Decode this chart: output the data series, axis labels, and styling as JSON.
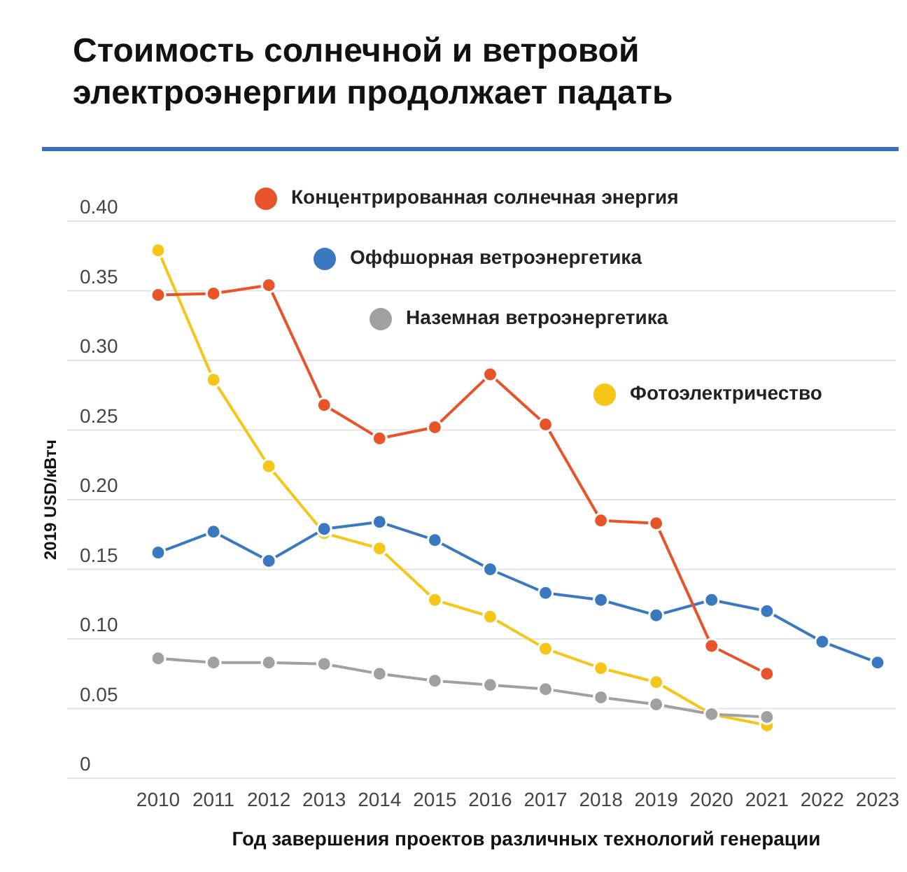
{
  "chart_data": {
    "type": "line",
    "title": "Стоимость солнечной и ветровой электроэнергии продолжает падать",
    "xlabel": "Год завершения проектов различных технологий генерации",
    "ylabel": "2019 USD/кВтч",
    "categories": [
      "2010",
      "2011",
      "2012",
      "2013",
      "2014",
      "2015",
      "2016",
      "2017",
      "2018",
      "2019",
      "2020",
      "2021",
      "2022",
      "2023"
    ],
    "series": [
      {
        "name": "Концентрированная солнечная энергия",
        "color": "#e8542a",
        "values": [
          0.347,
          0.348,
          0.354,
          0.268,
          0.244,
          0.252,
          0.29,
          0.254,
          0.185,
          0.183,
          0.095,
          0.075,
          null,
          null
        ]
      },
      {
        "name": "Оффшорная ветроэнергетика",
        "color": "#3a78c0",
        "values": [
          0.162,
          0.177,
          0.156,
          0.179,
          0.184,
          0.171,
          0.15,
          0.133,
          0.128,
          0.117,
          0.128,
          0.12,
          0.098,
          0.083
        ]
      },
      {
        "name": "Наземная ветроэнергетика",
        "color": "#a0a0a0",
        "values": [
          0.086,
          0.083,
          0.083,
          0.082,
          0.075,
          0.07,
          0.067,
          0.064,
          0.058,
          0.053,
          0.046,
          0.044,
          null,
          null
        ]
      },
      {
        "name": "Фотоэлектричество",
        "color": "#f5c518",
        "values": [
          0.379,
          0.286,
          0.224,
          0.176,
          0.165,
          0.128,
          0.116,
          0.093,
          0.079,
          0.069,
          0.046,
          0.038,
          null,
          null
        ]
      }
    ],
    "ylim": [
      0,
      0.4
    ],
    "yticks": [
      {
        "value": 0,
        "label": "0"
      },
      {
        "value": 0.05,
        "label": "0.05"
      },
      {
        "value": 0.1,
        "label": "0.10"
      },
      {
        "value": 0.15,
        "label": "0.15"
      },
      {
        "value": 0.2,
        "label": "0.20"
      },
      {
        "value": 0.25,
        "label": "0.25"
      },
      {
        "value": 0.3,
        "label": "0.30"
      },
      {
        "value": 0.35,
        "label": "0.35"
      },
      {
        "value": 0.4,
        "label": "0.40"
      }
    ],
    "grid": "y",
    "legend": "top right",
    "marker": "circle",
    "line_style": "solid"
  }
}
